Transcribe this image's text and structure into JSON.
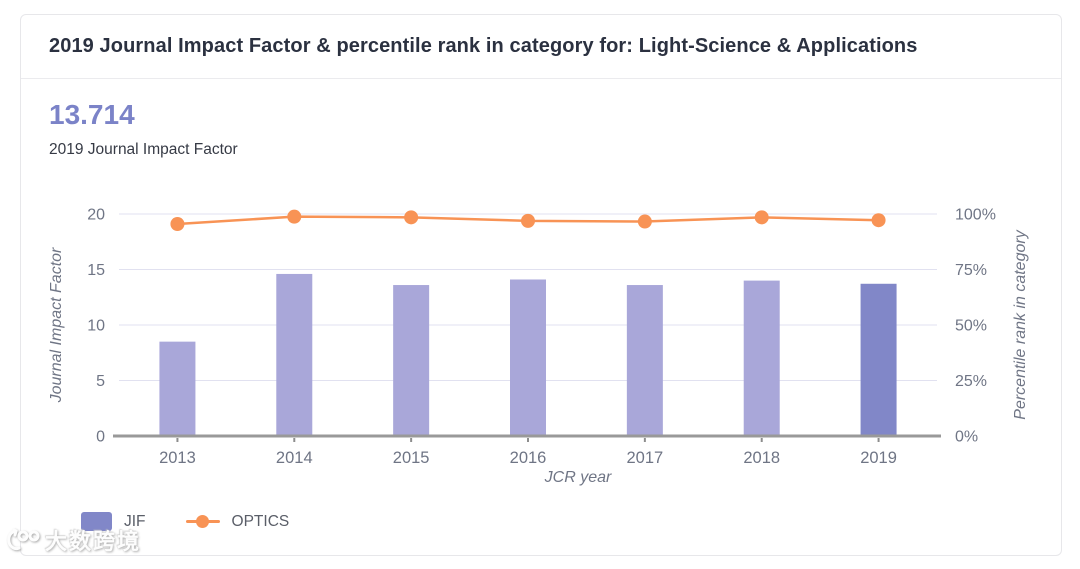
{
  "card": {
    "title": "2019 Journal Impact Factor & percentile rank in category for: Light-Science & Applications"
  },
  "metric": {
    "value": "13.714",
    "label": "2019 Journal Impact Factor"
  },
  "chart_data": {
    "type": "bar",
    "subtype": "bar+line dual-axis",
    "categories": [
      "2013",
      "2014",
      "2015",
      "2016",
      "2017",
      "2018",
      "2019"
    ],
    "series": [
      {
        "name": "JIF",
        "type": "bar",
        "axis": "left",
        "values": [
          8.5,
          14.6,
          13.6,
          14.1,
          13.6,
          14.0,
          13.714
        ]
      },
      {
        "name": "OPTICS",
        "type": "line",
        "axis": "right",
        "values": [
          95.5,
          98.8,
          98.5,
          96.9,
          96.6,
          98.5,
          97.2
        ]
      }
    ],
    "xlabel": "JCR year",
    "left_axis": {
      "label": "Journal Impact Factor",
      "ticks": [
        "0",
        "5",
        "10",
        "15",
        "20"
      ],
      "range": [
        0,
        20
      ]
    },
    "right_axis": {
      "label": "Percentile rank in category",
      "ticks": [
        "0%",
        "25%",
        "50%",
        "75%",
        "100%"
      ],
      "range": [
        0,
        100
      ]
    },
    "grid": true,
    "legend_position": "bottom-left",
    "highlight": {
      "series": "JIF",
      "category": "2019"
    }
  },
  "colors": {
    "bar": "#a9a7d9",
    "bar_highlight": "#8187c8",
    "line": "#f89355",
    "grid": "#e1e1f0",
    "axis_line": "#999999",
    "tick_mark": "#8d8d8d",
    "tick_text": "#6f7585",
    "title": "#2b3140",
    "metric_value": "#7b83c8"
  },
  "watermark": {
    "logo": "100-swirl-logo",
    "text": "大数跨境"
  }
}
